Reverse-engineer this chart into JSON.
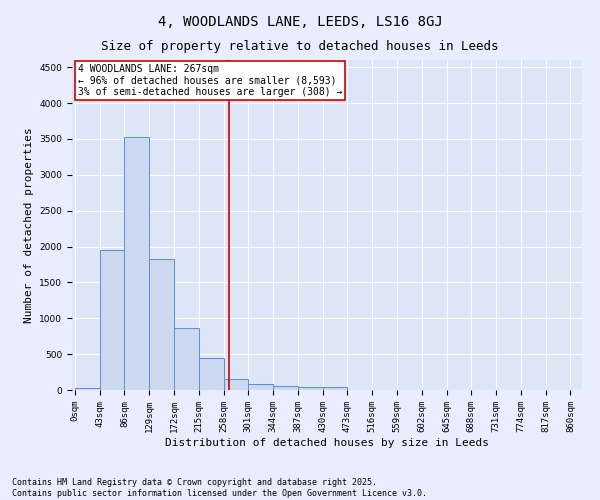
{
  "title1": "4, WOODLANDS LANE, LEEDS, LS16 8GJ",
  "title2": "Size of property relative to detached houses in Leeds",
  "xlabel": "Distribution of detached houses by size in Leeds",
  "ylabel": "Number of detached properties",
  "bin_edges": [
    0,
    43,
    86,
    129,
    172,
    215,
    258,
    301,
    344,
    387,
    430,
    473,
    516,
    559,
    602,
    645,
    688,
    731,
    774,
    817,
    860
  ],
  "bar_heights": [
    30,
    1950,
    3520,
    1820,
    860,
    450,
    160,
    90,
    55,
    45,
    35,
    0,
    0,
    0,
    0,
    0,
    0,
    0,
    0,
    0
  ],
  "bar_color": "#ccd9f0",
  "bar_edge_color": "#5b8dd9",
  "vline_x": 267,
  "vline_color": "#cc0000",
  "ylim": [
    0,
    4600
  ],
  "yticks": [
    0,
    500,
    1000,
    1500,
    2000,
    2500,
    3000,
    3500,
    4000,
    4500
  ],
  "annotation_text": "4 WOODLANDS LANE: 267sqm\n← 96% of detached houses are smaller (8,593)\n3% of semi-detached houses are larger (308) →",
  "annotation_box_color": "#cc0000",
  "bg_color": "#dce6f7",
  "fig_bg_color": "#e8eeff",
  "footer_text": "Contains HM Land Registry data © Crown copyright and database right 2025.\nContains public sector information licensed under the Open Government Licence v3.0.",
  "title1_fontsize": 10,
  "title2_fontsize": 9,
  "annotation_fontsize": 7,
  "tick_fontsize": 6.5,
  "ylabel_fontsize": 8,
  "xlabel_fontsize": 8,
  "footer_fontsize": 6
}
